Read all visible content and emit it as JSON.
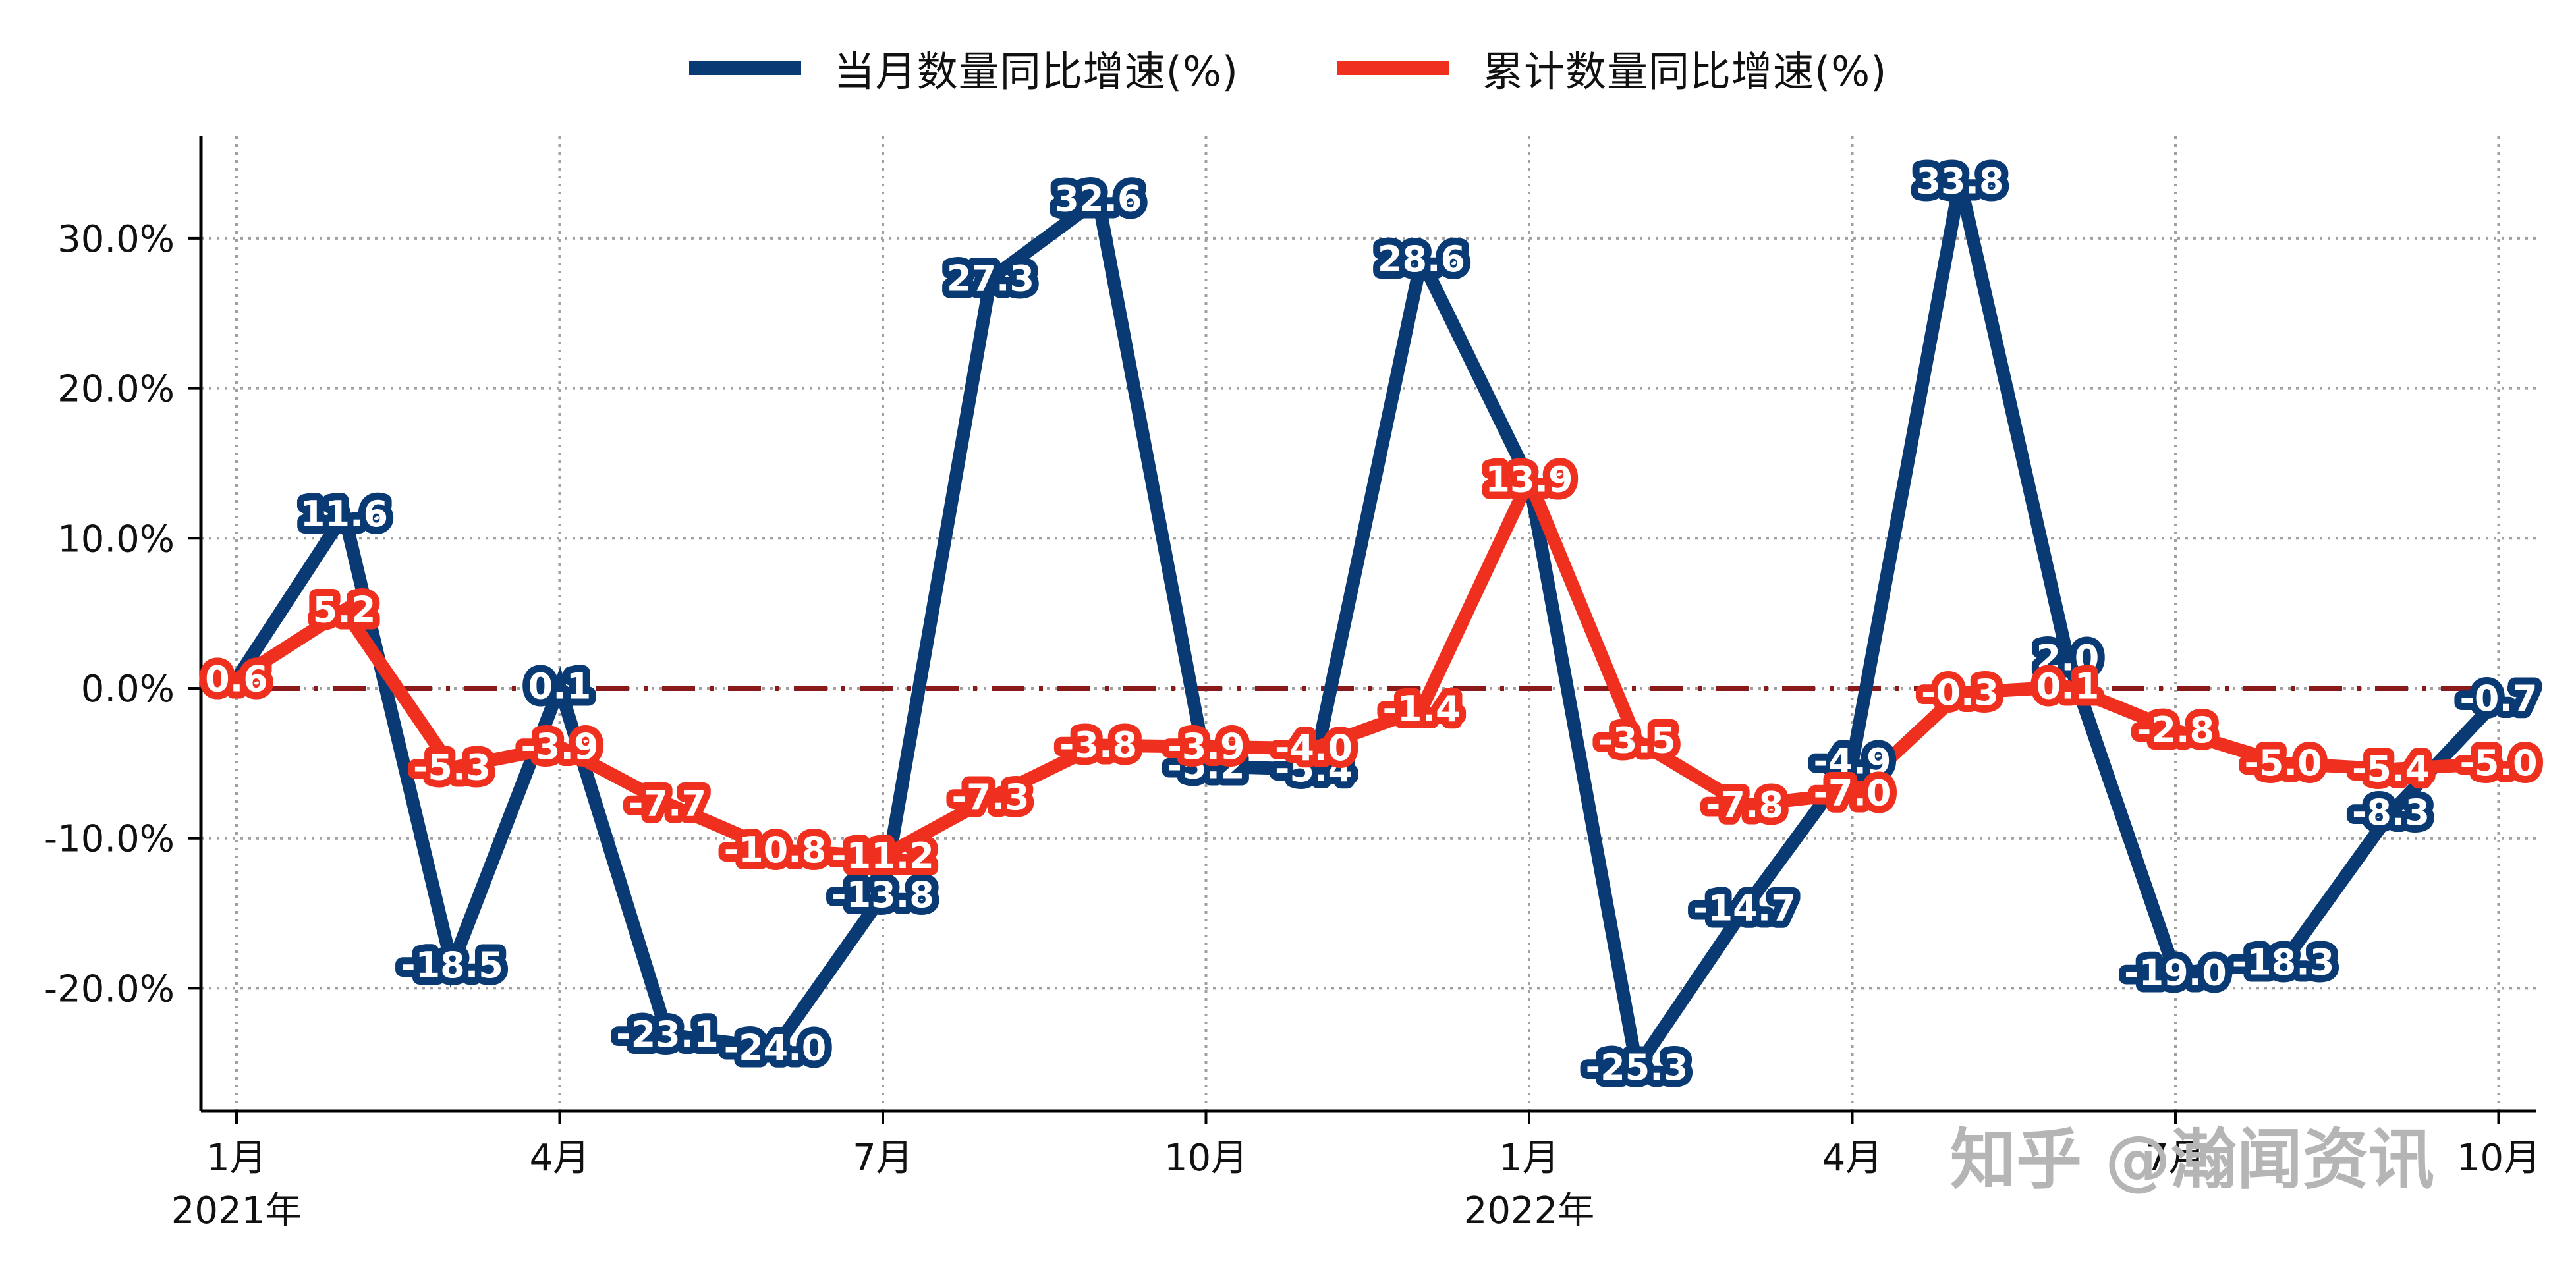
{
  "chart_data": {
    "type": "line",
    "title": "",
    "xlabel": "",
    "ylabel": "",
    "x": [
      "2021-01",
      "2021-02",
      "2021-03",
      "2021-04",
      "2021-05",
      "2021-06",
      "2021-07",
      "2021-08",
      "2021-09",
      "2021-10",
      "2021-11",
      "2021-12",
      "2022-01",
      "2022-02",
      "2022-03",
      "2022-04",
      "2022-05",
      "2022-06",
      "2022-07",
      "2022-08",
      "2022-09",
      "2022-10"
    ],
    "x_tick_labels": [
      {
        "index": 0,
        "label": "1月",
        "year": "2021年"
      },
      {
        "index": 3,
        "label": "4月",
        "year": ""
      },
      {
        "index": 6,
        "label": "7月",
        "year": ""
      },
      {
        "index": 9,
        "label": "10月",
        "year": ""
      },
      {
        "index": 12,
        "label": "1月",
        "year": "2022年"
      },
      {
        "index": 15,
        "label": "4月",
        "year": ""
      },
      {
        "index": 18,
        "label": "7月",
        "year": ""
      },
      {
        "index": 21,
        "label": "10月",
        "year": ""
      }
    ],
    "y_ticks": [
      {
        "value": 30,
        "label": "30.0%"
      },
      {
        "value": 20,
        "label": "20.0%"
      },
      {
        "value": 10,
        "label": "10.0%"
      },
      {
        "value": 0,
        "label": "0.0%"
      },
      {
        "value": -10,
        "label": "-10.0%"
      },
      {
        "value": -20,
        "label": "-20.0%"
      }
    ],
    "ylim": [
      -28.5,
      36.8
    ],
    "grid": true,
    "reference_line": {
      "y": 0,
      "style": "dashed",
      "color": "#8b1a1a"
    },
    "legend_position": "top-center",
    "series": [
      {
        "name": "当月数量同比增速(%)",
        "color": "#0a3a73",
        "values": [
          0.6,
          11.6,
          -18.5,
          0.1,
          -23.1,
          -24.0,
          -13.8,
          27.3,
          32.6,
          -5.2,
          -5.4,
          28.6,
          13.9,
          -25.3,
          -14.7,
          -4.9,
          33.8,
          2.0,
          -19.0,
          -18.3,
          -8.3,
          -0.7
        ]
      },
      {
        "name": "累计数量同比增速(%)",
        "color": "#f0301f",
        "values": [
          0.6,
          5.2,
          -5.3,
          -3.9,
          -7.7,
          -10.8,
          -11.2,
          -7.3,
          -3.8,
          -3.9,
          -4.0,
          -1.4,
          13.9,
          -3.5,
          -7.8,
          -7.0,
          -0.3,
          0.1,
          -2.8,
          -5.0,
          -5.4,
          -5.0
        ]
      }
    ]
  },
  "legend": {
    "items": [
      {
        "label": "当月数量同比增速(%)",
        "color": "#0a3a73"
      },
      {
        "label": "累计数量同比增速(%)",
        "color": "#f0301f"
      }
    ]
  },
  "watermark": {
    "text": "知乎 @瀚闻资讯"
  }
}
